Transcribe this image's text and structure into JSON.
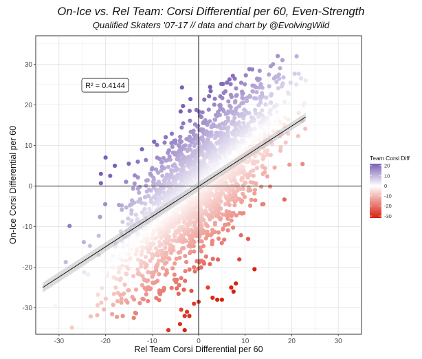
{
  "chart_data": {
    "type": "scatter",
    "title": "On-Ice vs. Rel Team: Corsi Differential per 60, Even-Strength",
    "subtitle": "Qualified Skaters '07-17  //  data and chart by @EvolvingWild",
    "xlabel": "Rel Team Corsi Differential per 60",
    "ylabel": "On-Ice Corsi Differential per 60",
    "xlim": [
      -35,
      35
    ],
    "ylim": [
      -36.5,
      37
    ],
    "x_ticks": [
      -30,
      -20,
      -10,
      0,
      10,
      20,
      30
    ],
    "y_ticks": [
      -30,
      -20,
      -10,
      0,
      10,
      20,
      30
    ],
    "grid": true,
    "annotation": {
      "text": "R² = 0.4144",
      "x": -22.5,
      "y": 24.8
    },
    "regression_line": {
      "x": [
        -33.5,
        23
      ],
      "y": [
        -25,
        17
      ],
      "confidence_band": true
    },
    "legend": {
      "title": "Team Corsi Diff",
      "placement": "right",
      "ticks": [
        20,
        10,
        0,
        -10,
        -20,
        -30
      ],
      "range": [
        -32,
        22
      ],
      "colors": {
        "high": "#7a5fb5",
        "mid": "#ffffff",
        "low": "#d8200f"
      }
    },
    "n_points": 2200,
    "point_cloud": {
      "relation": "on_ice = rel_team + team_corsi_diff",
      "rel_team_range": [
        -33,
        23
      ],
      "team_diff_range": [
        -32,
        22
      ]
    },
    "highlight_points": [
      {
        "x": 17,
        "y": 32
      },
      {
        "x": 18,
        "y": 31
      },
      {
        "x": 16,
        "y": 30
      },
      {
        "x": 17.5,
        "y": 29
      },
      {
        "x": 15.5,
        "y": 29.5
      },
      {
        "x": 22,
        "y": 26.5
      },
      {
        "x": 23,
        "y": 26
      },
      {
        "x": 21,
        "y": 25
      },
      {
        "x": -21,
        "y": 3
      },
      {
        "x": -20,
        "y": 7
      },
      {
        "x": -21,
        "y": 0.7
      },
      {
        "x": -18,
        "y": 5
      },
      {
        "x": -19,
        "y": 2.5
      },
      {
        "x": -15,
        "y": 5.5
      },
      {
        "x": -6.5,
        "y": -35.5
      },
      {
        "x": -4,
        "y": -34
      },
      {
        "x": -3,
        "y": -32
      },
      {
        "x": -2,
        "y": -32
      },
      {
        "x": -1,
        "y": -29
      },
      {
        "x": 0,
        "y": -28.5
      },
      {
        "x": -2.5,
        "y": -31
      },
      {
        "x": -3,
        "y": -35.5
      },
      {
        "x": 7,
        "y": -25
      },
      {
        "x": 8,
        "y": -24
      },
      {
        "x": 12,
        "y": -20.5
      },
      {
        "x": 3,
        "y": -27.5
      },
      {
        "x": 4,
        "y": -28
      },
      {
        "x": 5,
        "y": -28
      },
      {
        "x": -1,
        "y": -20
      },
      {
        "x": 2,
        "y": -25
      },
      {
        "x": 7.5,
        "y": -26
      }
    ]
  }
}
